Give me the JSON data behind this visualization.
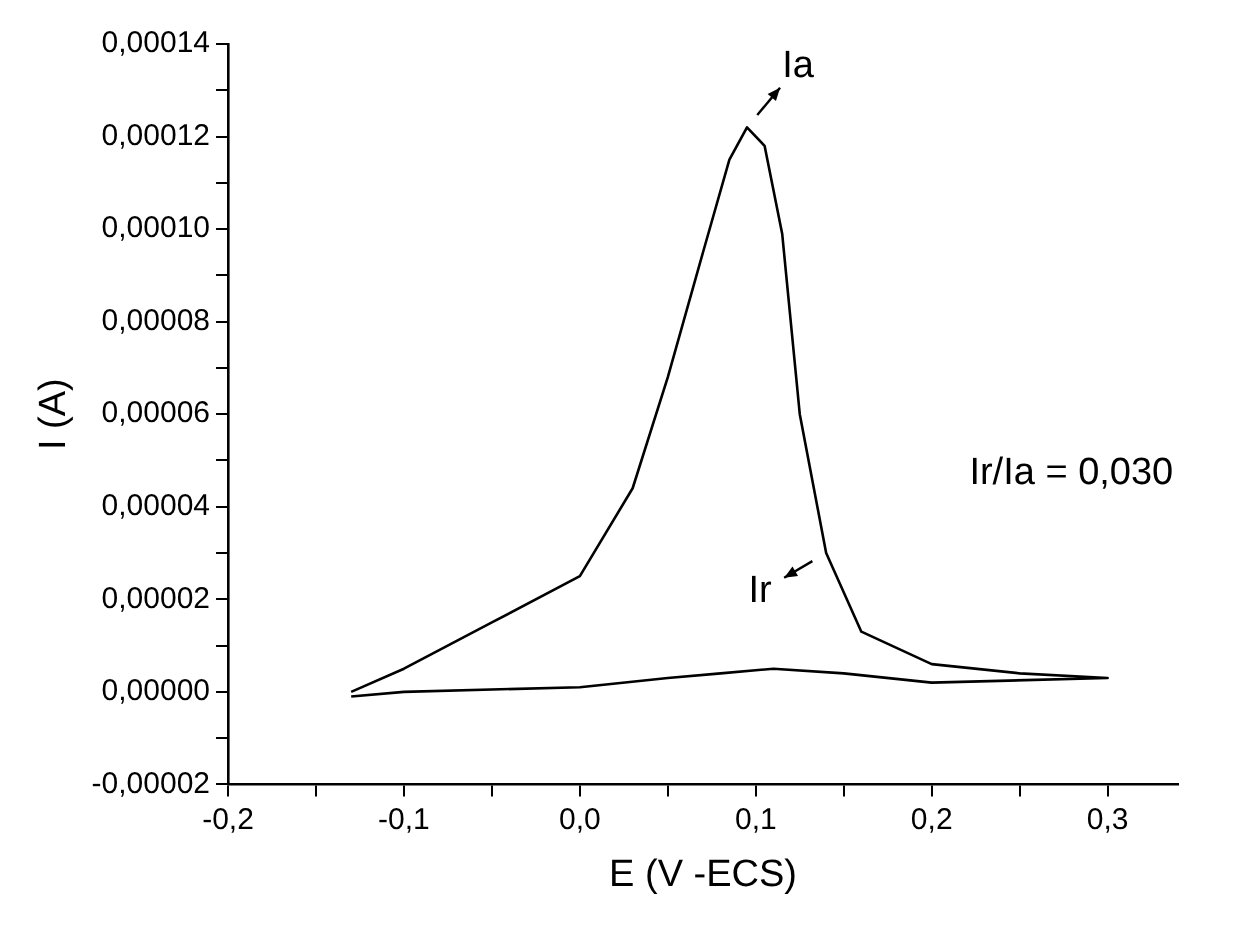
{
  "chart_data": {
    "type": "line",
    "xlabel": "E (V -ECS)",
    "ylabel": "I (A)",
    "xlim": [
      -0.2,
      0.34
    ],
    "ylim": [
      -2e-05,
      0.00014
    ],
    "xticks": [
      {
        "value": -0.2,
        "label": "-0,2"
      },
      {
        "value": -0.15,
        "label": null
      },
      {
        "value": -0.1,
        "label": "-0,1"
      },
      {
        "value": -0.05,
        "label": null
      },
      {
        "value": 0,
        "label": "0,0"
      },
      {
        "value": 0.05,
        "label": null
      },
      {
        "value": 0.1,
        "label": "0,1"
      },
      {
        "value": 0.15,
        "label": null
      },
      {
        "value": 0.2,
        "label": "0,2"
      },
      {
        "value": 0.25,
        "label": null
      },
      {
        "value": 0.3,
        "label": "0,3"
      }
    ],
    "yticks": [
      {
        "value": -2e-05,
        "label": "-0,00002"
      },
      {
        "value": -1e-05,
        "label": null
      },
      {
        "value": 0,
        "label": "0,00000"
      },
      {
        "value": 1e-05,
        "label": null
      },
      {
        "value": 2e-05,
        "label": "0,00002"
      },
      {
        "value": 3e-05,
        "label": null
      },
      {
        "value": 4e-05,
        "label": "0,00004"
      },
      {
        "value": 5e-05,
        "label": null
      },
      {
        "value": 6e-05,
        "label": "0,00006"
      },
      {
        "value": 7e-05,
        "label": null
      },
      {
        "value": 8e-05,
        "label": "0,00008"
      },
      {
        "value": 9e-05,
        "label": null
      },
      {
        "value": 0.0001,
        "label": "0,00010"
      },
      {
        "value": 0.00011,
        "label": null
      },
      {
        "value": 0.00012,
        "label": "0,00012"
      },
      {
        "value": 0.00013,
        "label": null
      },
      {
        "value": 0.00014,
        "label": "0,00014"
      }
    ],
    "grid": false,
    "legend": false,
    "marker": "none",
    "line_style": "solid",
    "series": [
      {
        "color": "#000000",
        "x": [
          -0.13,
          -0.1,
          -0.05,
          0.0,
          0.03,
          0.05,
          0.07,
          0.085,
          0.095,
          0.105,
          0.115,
          0.125,
          0.14,
          0.16,
          0.2,
          0.25,
          0.3,
          0.2,
          0.15,
          0.11,
          0.08,
          0.05,
          0.0,
          -0.1,
          -0.13
        ],
        "values": [
          0.0,
          5e-06,
          1.5e-05,
          2.5e-05,
          4.4e-05,
          6.8e-05,
          9.5e-05,
          0.000115,
          0.000122,
          0.000118,
          9.9e-05,
          6e-05,
          3e-05,
          1.3e-05,
          6e-06,
          4e-06,
          3e-06,
          2e-06,
          4e-06,
          5e-06,
          4e-06,
          3e-06,
          1e-06,
          0.0,
          -1e-06
        ]
      }
    ],
    "annotations": [
      "Ia",
      "Ir",
      "Ir/Ia = 0,030"
    ]
  }
}
